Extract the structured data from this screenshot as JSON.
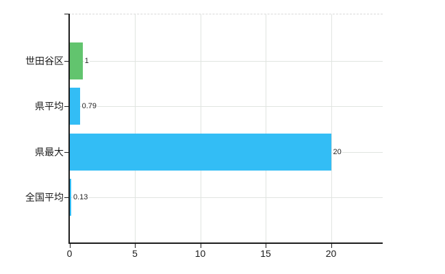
{
  "chart_data": {
    "type": "bar",
    "orientation": "horizontal",
    "title": "",
    "xlabel": "",
    "ylabel": "",
    "categories": [
      "世田谷区",
      "県平均",
      "県最大",
      "全国平均"
    ],
    "values": [
      1,
      0.79,
      20,
      0.13
    ],
    "value_labels": [
      "1",
      "0.79",
      "20",
      "0.13"
    ],
    "bar_colors": [
      "#62c46e",
      "#33bdf5",
      "#33bdf5",
      "#33bdf5"
    ],
    "x_ticks": [
      0,
      5,
      10,
      15,
      20
    ],
    "x_tick_labels": [
      "0",
      "5",
      "10",
      "15",
      "20"
    ],
    "xlim": [
      0,
      24
    ],
    "grid": true,
    "legend_position": "none"
  },
  "colors": {
    "background": "#ffffff",
    "axis": "#1a1a1a",
    "gridline": "#e0e4e0",
    "top_border": "#d8d8d8",
    "bar_blue": "#33bdf5",
    "bar_green": "#62c46e",
    "label_text": "#1a1a1a",
    "value_text": "#222222"
  }
}
